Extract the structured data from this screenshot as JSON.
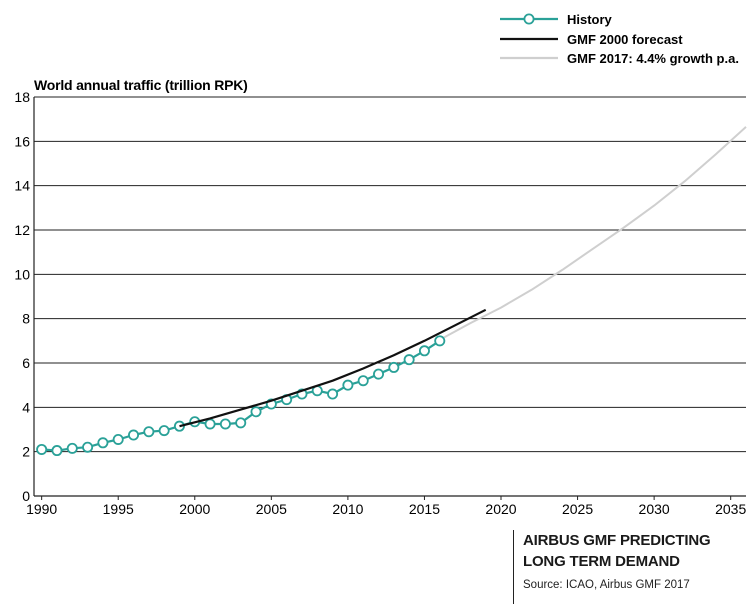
{
  "chart_data": {
    "type": "line",
    "ylabel": "World annual traffic (trillion RPK)",
    "xlim": [
      1989.5,
      2036
    ],
    "ylim": [
      0,
      18
    ],
    "y_ticks": [
      0,
      2,
      4,
      6,
      8,
      10,
      12,
      14,
      16,
      18
    ],
    "x_ticks": [
      1990,
      1995,
      2000,
      2005,
      2010,
      2015,
      2020,
      2025,
      2030,
      2035
    ],
    "grid": "horizontal",
    "legend_position": "top-right",
    "series": [
      {
        "name": "History",
        "color": "#2aa198",
        "marker": "open-circle",
        "x": [
          1990,
          1991,
          1992,
          1993,
          1994,
          1995,
          1996,
          1997,
          1998,
          1999,
          2000,
          2001,
          2002,
          2003,
          2004,
          2005,
          2006,
          2007,
          2008,
          2009,
          2010,
          2011,
          2012,
          2013,
          2014,
          2015,
          2016
        ],
        "y": [
          2.1,
          2.05,
          2.15,
          2.2,
          2.4,
          2.55,
          2.75,
          2.9,
          2.95,
          3.15,
          3.35,
          3.25,
          3.25,
          3.3,
          3.8,
          4.15,
          4.35,
          4.6,
          4.75,
          4.6,
          5.0,
          5.2,
          5.5,
          5.8,
          6.15,
          6.55,
          7.0
        ]
      },
      {
        "name": "GMF 2000 forecast",
        "color": "#111111",
        "x": [
          1999,
          2001,
          2003,
          2005,
          2007,
          2009,
          2011,
          2013,
          2015,
          2017,
          2019
        ],
        "y": [
          3.15,
          3.5,
          3.9,
          4.3,
          4.75,
          5.2,
          5.75,
          6.35,
          7.0,
          7.7,
          8.4
        ]
      },
      {
        "name": "GMF 2017: 4.4% growth p.a.",
        "color": "#cfcfcf",
        "x": [
          2016,
          2018,
          2020,
          2022,
          2024,
          2026,
          2028,
          2030,
          2032,
          2034,
          2036
        ],
        "y": [
          7.05,
          7.8,
          8.5,
          9.3,
          10.2,
          11.15,
          12.1,
          13.1,
          14.2,
          15.4,
          16.65
        ]
      }
    ]
  },
  "caption": {
    "title_line1": "AIRBUS GMF PREDICTING",
    "title_line2": "LONG TERM DEMAND",
    "source": "Source: ICAO, Airbus GMF 2017"
  }
}
